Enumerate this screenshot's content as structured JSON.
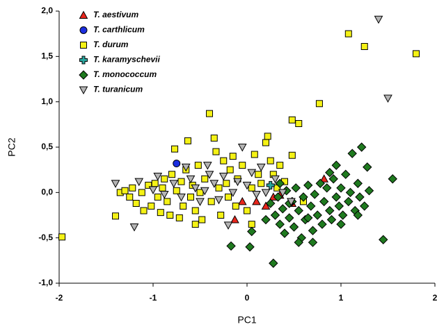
{
  "chart_data": {
    "type": "scatter",
    "x_label": "PC1",
    "y_label": "PC2",
    "xlim": [
      -2,
      2
    ],
    "xticks": [
      -2,
      -1,
      0,
      1,
      2
    ],
    "ylim": [
      -1,
      2
    ],
    "yticks": [
      {
        "value": -1,
        "label": "-1,0"
      },
      {
        "value": -0.5,
        "label": "-0,5"
      },
      {
        "value": 0,
        "label": "0,0"
      },
      {
        "value": 0.5,
        "label": "0,5"
      },
      {
        "value": 1,
        "label": "1,0"
      },
      {
        "value": 1.5,
        "label": "1,5"
      },
      {
        "value": 2,
        "label": "2,0"
      }
    ],
    "legend": "upper left",
    "series": [
      {
        "name": "T. aestivum",
        "color": "#e8261c",
        "marker": "triangle-up",
        "x": [
          0.82,
          -0.13,
          0.35,
          0.1,
          -0.05,
          0.2,
          0.28,
          0.48
        ],
        "values": [
          0.15,
          -0.3,
          -0.03,
          -0.1,
          -0.1,
          -0.15,
          -0.05,
          -0.12
        ]
      },
      {
        "name": "T. carthlicum",
        "color": "#1b2ee0",
        "marker": "circle",
        "x": [
          -0.75
        ],
        "values": [
          0.32
        ]
      },
      {
        "name": "T. durum",
        "color": "#f5f215",
        "marker": "square",
        "x": [
          -1.97,
          -1.4,
          -1.35,
          -1.3,
          -1.25,
          -1.22,
          -1.18,
          -1.12,
          -1.1,
          -1.05,
          -1.02,
          -0.98,
          -0.95,
          -0.92,
          -0.9,
          -0.88,
          -0.85,
          -0.82,
          -0.8,
          -0.77,
          -0.75,
          -0.72,
          -0.7,
          -0.68,
          -0.65,
          -0.63,
          -0.6,
          -0.58,
          -0.55,
          -0.52,
          -0.5,
          -0.48,
          -0.45,
          -0.4,
          -0.38,
          -0.35,
          -0.33,
          -0.3,
          -0.28,
          -0.25,
          -0.22,
          -0.2,
          -0.18,
          -0.15,
          -0.12,
          -0.1,
          -0.05,
          0,
          0.05,
          0.08,
          0.12,
          0.15,
          0.2,
          0.22,
          0.25,
          0.28,
          0.32,
          0.35,
          0.4,
          0.48,
          0.48,
          0.55,
          0.77,
          1.08,
          1.25,
          1.8,
          -0.55,
          0.6,
          0.05
        ],
        "values": [
          -0.49,
          -0.26,
          0,
          0.02,
          -0.05,
          0.05,
          -0.12,
          0,
          -0.2,
          0.08,
          -0.15,
          0.1,
          -0.05,
          -0.22,
          0.05,
          0.15,
          -0.1,
          -0.25,
          0.2,
          0.48,
          0.02,
          -0.28,
          0.12,
          -0.15,
          0.25,
          0.57,
          -0.05,
          0.08,
          -0.2,
          0.3,
          0,
          -0.3,
          0.15,
          0.87,
          -0.1,
          0.6,
          0.45,
          0.05,
          -0.25,
          0.35,
          0.1,
          -0.05,
          0.25,
          0.4,
          -0.15,
          0.15,
          0.3,
          -0.2,
          0.05,
          0.42,
          0.2,
          0.1,
          0.55,
          0.62,
          0.35,
          0.2,
          0.05,
          0.3,
          0.12,
          0.41,
          0.8,
          0.76,
          0.98,
          1.75,
          1.61,
          1.53,
          -0.35,
          -0.1,
          -0.35
        ]
      },
      {
        "name": "T. karamyschevii",
        "color": "#2aa7a0",
        "marker": "cross",
        "x": [
          0.25
        ],
        "values": [
          0.08
        ]
      },
      {
        "name": "T. monococcum",
        "color": "#1f7a1f",
        "marker": "diamond",
        "x": [
          -0.17,
          0.03,
          0.05,
          0.28,
          0.2,
          0.25,
          0.3,
          0.33,
          0.35,
          0.38,
          0.4,
          0.42,
          0.45,
          0.48,
          0.5,
          0.52,
          0.55,
          0.58,
          0.6,
          0.62,
          0.65,
          0.68,
          0.7,
          0.72,
          0.75,
          0.78,
          0.8,
          0.82,
          0.85,
          0.88,
          0.9,
          0.92,
          0.95,
          0.98,
          1,
          1.02,
          1.05,
          1.08,
          1.1,
          1.12,
          1.15,
          1.18,
          1.2,
          1.22,
          1.25,
          1.28,
          1.3,
          1.55,
          1.45,
          0.95,
          0.7,
          0.55,
          0.45,
          0.35,
          0.88,
          1,
          0.65,
          1.18
        ],
        "values": [
          -0.59,
          -0.6,
          -0.43,
          -0.78,
          -0.3,
          -0.12,
          -0.25,
          -0.05,
          -0.35,
          -0.18,
          -0.45,
          0.02,
          -0.28,
          -0.1,
          -0.38,
          0.05,
          -0.2,
          -0.5,
          -0.05,
          -0.3,
          0.08,
          -0.15,
          -0.42,
          -0.02,
          -0.25,
          0.1,
          -0.35,
          -0.1,
          0.05,
          -0.2,
          -0.3,
          0.15,
          -0.05,
          -0.15,
          0.05,
          -0.25,
          0.2,
          -0.1,
          0,
          0.43,
          -0.2,
          0.1,
          -0.05,
          0.5,
          -0.15,
          0.28,
          0.02,
          0.15,
          -0.52,
          0.3,
          -0.55,
          -0.55,
          -0.12,
          0.1,
          0.22,
          -0.35,
          -0.28,
          -0.25
        ]
      },
      {
        "name": "T. turanicum",
        "color": "#b4b4b4",
        "marker": "triangle-down",
        "x": [
          1.4,
          1.5,
          -1.4,
          -1.2,
          -1.15,
          -1,
          -0.95,
          -0.88,
          -0.78,
          -0.7,
          -0.6,
          -0.55,
          -0.5,
          -0.45,
          -0.4,
          -0.35,
          -0.3,
          -0.25,
          -0.2,
          -0.15,
          -0.1,
          -0.05,
          0,
          0.05,
          0.1,
          0.15,
          0.2,
          0.3,
          0.38,
          0.47,
          -0.65,
          -0.42
        ],
        "values": [
          1.91,
          1.04,
          0.1,
          -0.38,
          0.12,
          0.03,
          0.18,
          -0.02,
          0.1,
          -0.05,
          0.15,
          0.05,
          -0.1,
          0.02,
          0.2,
          0.1,
          -0.08,
          0.18,
          -0.36,
          0,
          0.12,
          0.5,
          0.08,
          0.22,
          -0.02,
          0.28,
          0,
          0.15,
          0,
          -0.1,
          0.28,
          0.3
        ]
      }
    ]
  }
}
